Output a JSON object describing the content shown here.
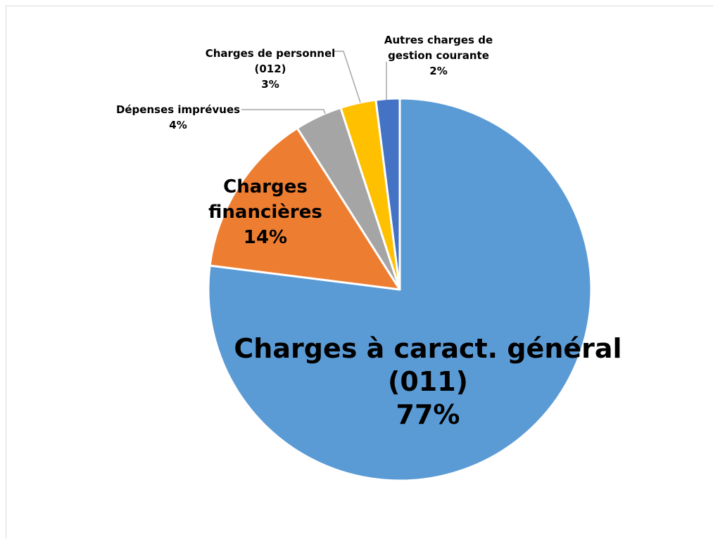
{
  "chart_data": {
    "type": "pie",
    "title": "",
    "slices": [
      {
        "label": "Charges à caract. général (011)",
        "label_lines": [
          "Charges à caract. général",
          "(011)"
        ],
        "value": 77,
        "value_label": "77%",
        "color": "#5b9bd5"
      },
      {
        "label": "Charges financières",
        "label_lines": [
          "Charges",
          "financières"
        ],
        "value": 14,
        "value_label": "14%",
        "color": "#ed7d31"
      },
      {
        "label": "Dépenses imprévues",
        "label_lines": [
          "Dépenses imprévues"
        ],
        "value": 4,
        "value_label": "4%",
        "color": "#a5a5a5"
      },
      {
        "label": "Charges de personnel (012)",
        "label_lines": [
          "Charges de personnel",
          "(012)"
        ],
        "value": 3,
        "value_label": "3%",
        "color": "#ffc000"
      },
      {
        "label": "Autres charges de gestion courante",
        "label_lines": [
          "Autres charges de",
          "gestion courante"
        ],
        "value": 2,
        "value_label": "2%",
        "color": "#4472c4"
      }
    ],
    "start_position": "12 o'clock",
    "direction": "clockwise",
    "legend": "none"
  }
}
